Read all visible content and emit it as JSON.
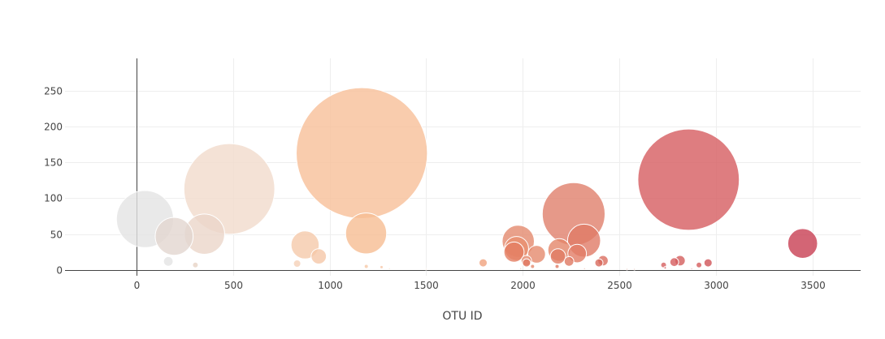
{
  "chart_data": {
    "type": "scatter",
    "subtype": "bubble",
    "title": "",
    "xlabel": "OTU ID",
    "ylabel": "",
    "xlim": [
      -370,
      3750
    ],
    "ylim": [
      -8,
      295
    ],
    "x_ticks": [
      0,
      500,
      1000,
      1500,
      2000,
      2500,
      3000,
      3500
    ],
    "y_ticks": [
      0,
      50,
      100,
      150,
      200,
      250
    ],
    "grid": true,
    "legend": "none",
    "colorscale": [
      "#e0e0e0",
      "#f0d8c8",
      "#f6bf96",
      "#e8866a",
      "#c93c4e"
    ],
    "bubble_size_rule": "radius proportional to sample value",
    "points": [
      {
        "x": 44,
        "y": 71,
        "v": 71,
        "c": "#e4e4e4"
      },
      {
        "x": 481,
        "y": 113,
        "v": 113,
        "c": "#f1dbcc"
      },
      {
        "x": 1167,
        "y": 163,
        "v": 163,
        "c": "#f7bf98"
      },
      {
        "x": 2264,
        "y": 78,
        "v": 78,
        "c": "#e0806c"
      },
      {
        "x": 2859,
        "y": 126,
        "v": 126,
        "c": "#d65c60"
      },
      {
        "x": 3450,
        "y": 37,
        "v": 37,
        "c": "#c83e52"
      },
      {
        "x": 195,
        "y": 47,
        "v": 47,
        "c": "#e2d6d0"
      },
      {
        "x": 352,
        "y": 50,
        "v": 50,
        "c": "#ebd6c9"
      },
      {
        "x": 873,
        "y": 35,
        "v": 35,
        "c": "#f5c9aa"
      },
      {
        "x": 944,
        "y": 19,
        "v": 19,
        "c": "#f5c7a8"
      },
      {
        "x": 1189,
        "y": 51,
        "v": 51,
        "c": "#f6bd92"
      },
      {
        "x": 1977,
        "y": 40,
        "v": 40,
        "c": "#e48a6e"
      },
      {
        "x": 1968,
        "y": 30,
        "v": 30,
        "c": "#e8906f"
      },
      {
        "x": 1955,
        "y": 25,
        "v": 25,
        "c": "#e47e63"
      },
      {
        "x": 2072,
        "y": 22,
        "v": 22,
        "c": "#e58a6d"
      },
      {
        "x": 2189,
        "y": 28,
        "v": 28,
        "c": "#e38669"
      },
      {
        "x": 2183,
        "y": 19,
        "v": 19,
        "c": "#e07b63"
      },
      {
        "x": 2318,
        "y": 41,
        "v": 41,
        "c": "#e07a66"
      },
      {
        "x": 2282,
        "y": 23,
        "v": 23,
        "c": "#e27c65"
      },
      {
        "x": 2240,
        "y": 12,
        "v": 12,
        "c": "#df7862"
      },
      {
        "x": 2019,
        "y": 13,
        "v": 13,
        "c": "#e38a6e"
      },
      {
        "x": 2020,
        "y": 10,
        "v": 10,
        "c": "#e07862"
      },
      {
        "x": 2416,
        "y": 13,
        "v": 13,
        "c": "#db6e60"
      },
      {
        "x": 2395,
        "y": 10,
        "v": 10,
        "c": "#d86a5e"
      },
      {
        "x": 2815,
        "y": 13,
        "v": 13,
        "c": "#d35e5c"
      },
      {
        "x": 2785,
        "y": 11,
        "v": 11,
        "c": "#d65c5e"
      },
      {
        "x": 2730,
        "y": 7,
        "v": 7,
        "c": "#d66060"
      },
      {
        "x": 2960,
        "y": 10,
        "v": 10,
        "c": "#cf5458"
      },
      {
        "x": 2913,
        "y": 7,
        "v": 7,
        "c": "#d45c5c"
      },
      {
        "x": 165,
        "y": 12,
        "v": 12,
        "c": "#e3e3e3"
      },
      {
        "x": 305,
        "y": 7,
        "v": 7,
        "c": "#e7d3c6"
      },
      {
        "x": 832,
        "y": 9,
        "v": 9,
        "c": "#f5d1b8"
      },
      {
        "x": 1795,
        "y": 10,
        "v": 10,
        "c": "#f0a27e"
      },
      {
        "x": 1190,
        "y": 5,
        "v": 5,
        "c": "#f6c9a8"
      },
      {
        "x": 1269,
        "y": 4,
        "v": 4,
        "c": "#f6c6a6"
      },
      {
        "x": 2051,
        "y": 5,
        "v": 5,
        "c": "#e48a6e"
      },
      {
        "x": 2178,
        "y": 5,
        "v": 5,
        "c": "#e07b63"
      },
      {
        "x": 2738,
        "y": 3,
        "v": 3,
        "c": "#d65c5e"
      },
      {
        "x": 1310,
        "y": 2,
        "v": 2,
        "c": "#f6c9aa"
      },
      {
        "x": 1500,
        "y": 1,
        "v": 1,
        "c": "#f3d3bd"
      },
      {
        "x": 1990,
        "y": 2,
        "v": 2,
        "c": "#e8a088"
      },
      {
        "x": 2320,
        "y": 2,
        "v": 2,
        "c": "#e38a70"
      },
      {
        "x": 2540,
        "y": 1,
        "v": 1,
        "c": "#dd9a8a"
      },
      {
        "x": 2579,
        "y": 1,
        "v": 1,
        "c": "#dca294"
      },
      {
        "x": 2875,
        "y": 2,
        "v": 2,
        "c": "#d66a6a"
      }
    ]
  }
}
